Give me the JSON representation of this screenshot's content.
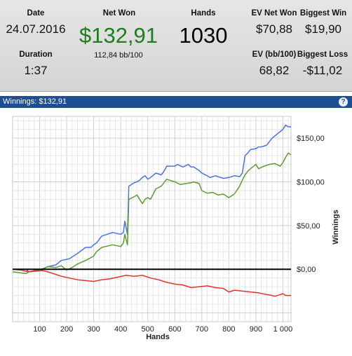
{
  "stats": {
    "date_label": "Date",
    "date_value": "24.07.2016",
    "duration_label": "Duration",
    "duration_value": "1:37",
    "net_won_label": "Net Won",
    "net_won_value": "$132,91",
    "bb100_value": "112,84 bb/100",
    "hands_label": "Hands",
    "hands_value": "1030",
    "ev_net_won_label": "EV Net Won",
    "ev_net_won_value": "$70,88",
    "ev_bb100_label": "EV (bb/100)",
    "ev_bb100_value": "68,82",
    "biggest_win_label": "Biggest Win",
    "biggest_win_value": "$19,90",
    "biggest_loss_label": "Biggest Loss",
    "biggest_loss_value": "-$11,02"
  },
  "panel": {
    "title": "Winnings: $132,91",
    "help_icon": "?"
  },
  "colors": {
    "winnings": "#4a72e8",
    "showdown": "#5f9a36",
    "non_showdown": "#e8312a",
    "zero_line": "#000000",
    "header_bar": "#1f4f93",
    "net_won": "#1e7d1e"
  },
  "chart_data": {
    "type": "line",
    "xlabel": "Hands",
    "ylabel": "Winnings",
    "xlim": [
      0,
      1030
    ],
    "ylim": [
      -60,
      175
    ],
    "x_ticks": [
      "100",
      "200",
      "300",
      "400",
      "500",
      "600",
      "700",
      "800",
      "900",
      "1 000"
    ],
    "y_ticks": [
      "$150,00",
      "$100,00",
      "$50,00",
      "$0,00"
    ],
    "grid": true,
    "series": [
      {
        "values": [
          [
            0,
            0
          ],
          [
            50,
            0
          ],
          [
            60,
            -3
          ],
          [
            100,
            -1
          ],
          [
            130,
            3
          ],
          [
            160,
            5
          ],
          [
            180,
            10
          ],
          [
            210,
            12
          ],
          [
            240,
            18
          ],
          [
            270,
            25
          ],
          [
            290,
            25
          ],
          [
            300,
            28
          ],
          [
            310,
            30
          ],
          [
            330,
            38
          ],
          [
            370,
            42
          ],
          [
            400,
            40
          ],
          [
            410,
            42
          ],
          [
            415,
            55
          ],
          [
            425,
            40
          ],
          [
            430,
            95
          ],
          [
            450,
            99
          ],
          [
            460,
            100
          ],
          [
            470,
            102
          ],
          [
            480,
            105
          ],
          [
            490,
            107
          ],
          [
            500,
            103
          ],
          [
            510,
            105
          ],
          [
            530,
            110
          ],
          [
            550,
            108
          ],
          [
            560,
            112
          ],
          [
            570,
            118
          ],
          [
            600,
            118
          ],
          [
            610,
            120
          ],
          [
            630,
            117
          ],
          [
            650,
            120
          ],
          [
            660,
            117
          ],
          [
            670,
            117
          ],
          [
            690,
            113
          ],
          [
            700,
            110
          ],
          [
            720,
            107
          ],
          [
            730,
            105
          ],
          [
            750,
            107
          ],
          [
            780,
            104
          ],
          [
            800,
            105
          ],
          [
            820,
            107
          ],
          [
            840,
            106
          ],
          [
            850,
            110
          ],
          [
            860,
            130
          ],
          [
            870,
            133
          ],
          [
            880,
            137
          ],
          [
            900,
            138
          ],
          [
            910,
            140
          ],
          [
            920,
            140
          ],
          [
            940,
            142
          ],
          [
            960,
            150
          ],
          [
            980,
            155
          ],
          [
            1000,
            160
          ],
          [
            1010,
            165
          ],
          [
            1020,
            163
          ],
          [
            1030,
            163
          ]
        ]
      },
      {
        "values": [
          [
            0,
            -3
          ],
          [
            50,
            -5
          ],
          [
            60,
            -3
          ],
          [
            100,
            -2
          ],
          [
            130,
            3
          ],
          [
            160,
            2
          ],
          [
            180,
            4
          ],
          [
            200,
            -1
          ],
          [
            220,
            2
          ],
          [
            240,
            6
          ],
          [
            270,
            10
          ],
          [
            300,
            15
          ],
          [
            310,
            20
          ],
          [
            330,
            25
          ],
          [
            370,
            28
          ],
          [
            400,
            26
          ],
          [
            410,
            30
          ],
          [
            415,
            40
          ],
          [
            425,
            28
          ],
          [
            430,
            80
          ],
          [
            450,
            83
          ],
          [
            460,
            85
          ],
          [
            480,
            75
          ],
          [
            490,
            80
          ],
          [
            500,
            82
          ],
          [
            510,
            80
          ],
          [
            530,
            92
          ],
          [
            550,
            95
          ],
          [
            570,
            103
          ],
          [
            600,
            100
          ],
          [
            620,
            97
          ],
          [
            640,
            98
          ],
          [
            660,
            99
          ],
          [
            670,
            100
          ],
          [
            690,
            98
          ],
          [
            700,
            90
          ],
          [
            720,
            87
          ],
          [
            740,
            88
          ],
          [
            760,
            85
          ],
          [
            780,
            86
          ],
          [
            800,
            82
          ],
          [
            820,
            86
          ],
          [
            840,
            95
          ],
          [
            850,
            102
          ],
          [
            860,
            108
          ],
          [
            870,
            112
          ],
          [
            880,
            115
          ],
          [
            900,
            120
          ],
          [
            910,
            115
          ],
          [
            930,
            118
          ],
          [
            950,
            120
          ],
          [
            970,
            121
          ],
          [
            990,
            118
          ],
          [
            1000,
            122
          ],
          [
            1010,
            128
          ],
          [
            1020,
            133
          ],
          [
            1030,
            131
          ]
        ]
      },
      {
        "values": [
          [
            0,
            0
          ],
          [
            30,
            -1
          ],
          [
            60,
            -3
          ],
          [
            90,
            -1
          ],
          [
            120,
            -2
          ],
          [
            150,
            -5
          ],
          [
            180,
            -8
          ],
          [
            210,
            -10
          ],
          [
            240,
            -12
          ],
          [
            270,
            -13
          ],
          [
            300,
            -14
          ],
          [
            330,
            -12
          ],
          [
            360,
            -11
          ],
          [
            390,
            -9
          ],
          [
            420,
            -7
          ],
          [
            450,
            -8
          ],
          [
            480,
            -7
          ],
          [
            510,
            -10
          ],
          [
            540,
            -12
          ],
          [
            570,
            -15
          ],
          [
            600,
            -17
          ],
          [
            630,
            -18
          ],
          [
            660,
            -21
          ],
          [
            690,
            -20
          ],
          [
            720,
            -19
          ],
          [
            750,
            -21
          ],
          [
            780,
            -22
          ],
          [
            800,
            -26
          ],
          [
            820,
            -24
          ],
          [
            850,
            -25
          ],
          [
            880,
            -26
          ],
          [
            910,
            -27
          ],
          [
            940,
            -29
          ],
          [
            960,
            -30
          ],
          [
            970,
            -31
          ],
          [
            990,
            -29
          ],
          [
            1000,
            -28
          ],
          [
            1010,
            -30
          ],
          [
            1030,
            -30
          ]
        ]
      }
    ]
  }
}
